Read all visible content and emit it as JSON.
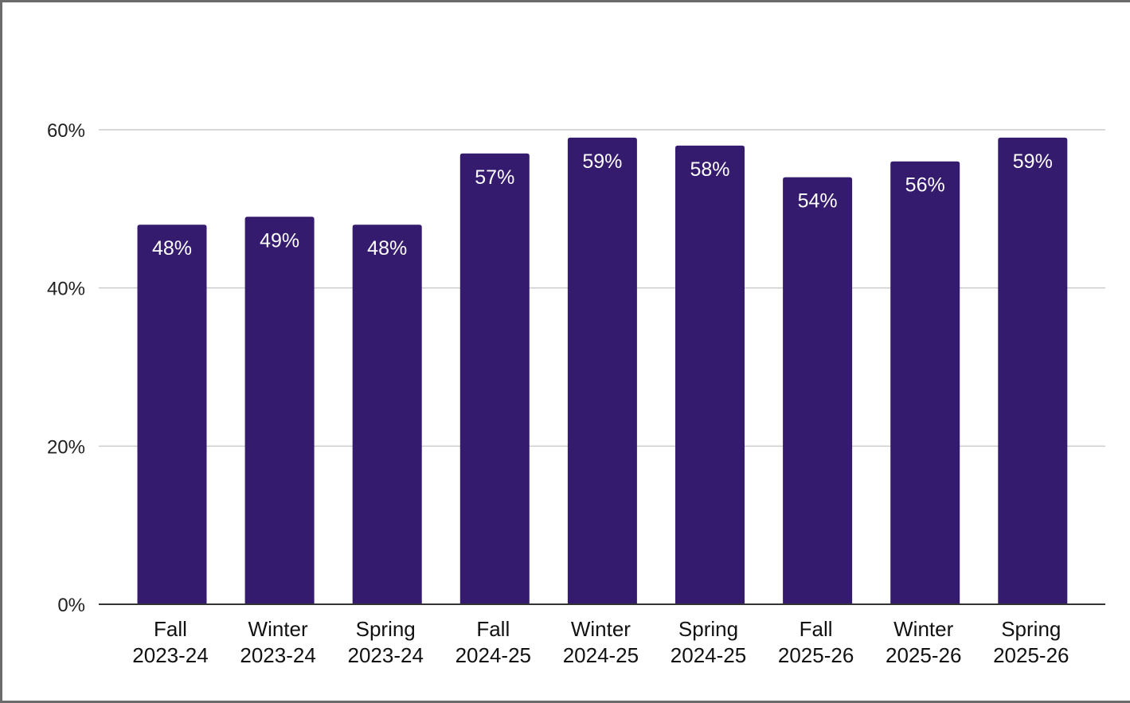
{
  "chart_data": {
    "type": "bar",
    "categories": [
      [
        "Fall",
        "2023-24"
      ],
      [
        "Winter",
        "2023-24"
      ],
      [
        "Spring",
        "2023-24"
      ],
      [
        "Fall",
        "2024-25"
      ],
      [
        "Winter",
        "2024-25"
      ],
      [
        "Spring",
        "2024-25"
      ],
      [
        "Fall",
        "2025-26"
      ],
      [
        "Winter",
        "2025-26"
      ],
      [
        "Spring",
        "2025-26"
      ]
    ],
    "values": [
      48,
      49,
      48,
      57,
      59,
      58,
      54,
      56,
      59
    ],
    "data_labels": [
      "48%",
      "49%",
      "48%",
      "57%",
      "59%",
      "58%",
      "54%",
      "56%",
      "59%"
    ],
    "yticks": [
      0,
      20,
      40,
      60
    ],
    "ytick_labels": [
      "0%",
      "20%",
      "40%",
      "60%"
    ],
    "ylim": [
      0,
      60
    ],
    "grid": true,
    "legend": "none",
    "title": "",
    "xlabel": "",
    "ylabel": "",
    "colors": {
      "bar": "#341b6e",
      "grid": "#cccccc",
      "axis": "#333333",
      "data_label": "#ffffff",
      "frame": "#6b6b6b"
    }
  }
}
